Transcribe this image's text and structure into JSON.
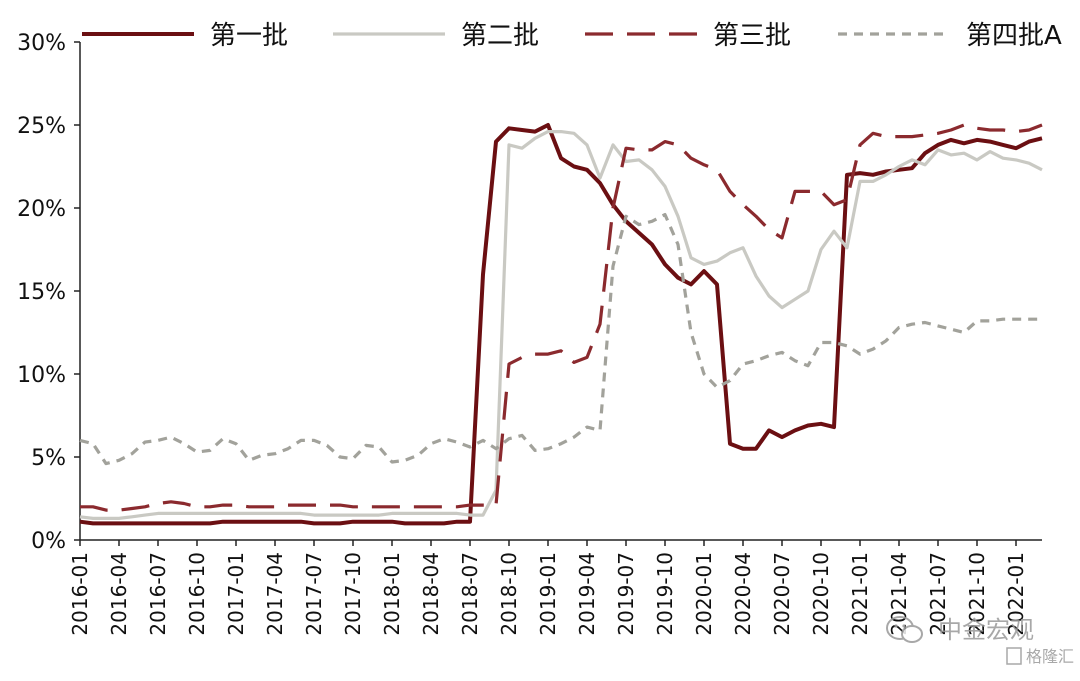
{
  "chart_data": {
    "type": "line",
    "title": "",
    "xlabel": "",
    "ylabel": "",
    "ylim": [
      0,
      30
    ],
    "y_ticks": [
      "0%",
      "5%",
      "10%",
      "15%",
      "20%",
      "25%",
      "30%"
    ],
    "y_tick_values": [
      0,
      5,
      10,
      15,
      20,
      25,
      30
    ],
    "x_tick_labels": [
      "2016-01",
      "2016-04",
      "2016-07",
      "2016-10",
      "2017-01",
      "2017-04",
      "2017-07",
      "2017-10",
      "2018-01",
      "2018-04",
      "2018-07",
      "2018-10",
      "2019-01",
      "2019-04",
      "2019-07",
      "2019-10",
      "2020-01",
      "2020-04",
      "2020-07",
      "2020-10",
      "2021-01",
      "2021-04",
      "2021-07",
      "2021-10",
      "2022-01"
    ],
    "x_start": "2016-01",
    "x_end": "2022-03",
    "grid": false,
    "legend_position": "top",
    "series": [
      {
        "name": "第一批",
        "color": "#6b0f12",
        "dash": "solid",
        "x": [
          "2016-01",
          "2016-02",
          "2016-03",
          "2016-04",
          "2016-05",
          "2016-06",
          "2016-07",
          "2016-08",
          "2016-09",
          "2016-10",
          "2016-11",
          "2016-12",
          "2017-01",
          "2017-02",
          "2017-03",
          "2017-04",
          "2017-05",
          "2017-06",
          "2017-07",
          "2017-08",
          "2017-09",
          "2017-10",
          "2017-11",
          "2017-12",
          "2018-01",
          "2018-02",
          "2018-03",
          "2018-04",
          "2018-05",
          "2018-06",
          "2018-07",
          "2018-08",
          "2018-09",
          "2018-10",
          "2018-11",
          "2018-12",
          "2019-01",
          "2019-02",
          "2019-03",
          "2019-04",
          "2019-05",
          "2019-06",
          "2019-07",
          "2019-08",
          "2019-09",
          "2019-10",
          "2019-11",
          "2019-12",
          "2020-01",
          "2020-02",
          "2020-03",
          "2020-04",
          "2020-05",
          "2020-06",
          "2020-07",
          "2020-08",
          "2020-09",
          "2020-10",
          "2020-11",
          "2020-12",
          "2021-01",
          "2021-02",
          "2021-03",
          "2021-04",
          "2021-05",
          "2021-06",
          "2021-07",
          "2021-08",
          "2021-09",
          "2021-10",
          "2021-11",
          "2021-12",
          "2022-01",
          "2022-02",
          "2022-03"
        ],
        "y": [
          1.1,
          1.0,
          1.0,
          1.0,
          1.0,
          1.0,
          1.0,
          1.0,
          1.0,
          1.0,
          1.0,
          1.1,
          1.1,
          1.1,
          1.1,
          1.1,
          1.1,
          1.1,
          1.0,
          1.0,
          1.0,
          1.1,
          1.1,
          1.1,
          1.1,
          1.0,
          1.0,
          1.0,
          1.0,
          1.1,
          1.1,
          16.0,
          24.0,
          24.8,
          24.7,
          24.6,
          25.0,
          23.0,
          22.5,
          22.3,
          21.5,
          20.2,
          19.2,
          18.5,
          17.8,
          16.6,
          15.8,
          15.4,
          16.2,
          15.4,
          5.8,
          5.5,
          5.5,
          6.6,
          6.2,
          6.6,
          6.9,
          7.0,
          6.8,
          22.0,
          22.1,
          22.0,
          22.2,
          22.3,
          22.4,
          23.3,
          23.8,
          24.1,
          23.9,
          24.1,
          24.0,
          23.8,
          23.6,
          24.0,
          24.2
        ]
      },
      {
        "name": "第二批",
        "color": "#c9c9c3",
        "dash": "solid",
        "x": [
          "2016-01",
          "2016-02",
          "2016-03",
          "2016-04",
          "2016-05",
          "2016-06",
          "2016-07",
          "2016-08",
          "2016-09",
          "2016-10",
          "2016-11",
          "2016-12",
          "2017-01",
          "2017-02",
          "2017-03",
          "2017-04",
          "2017-05",
          "2017-06",
          "2017-07",
          "2017-08",
          "2017-09",
          "2017-10",
          "2017-11",
          "2017-12",
          "2018-01",
          "2018-02",
          "2018-03",
          "2018-04",
          "2018-05",
          "2018-06",
          "2018-07",
          "2018-08",
          "2018-09",
          "2018-10",
          "2018-11",
          "2018-12",
          "2019-01",
          "2019-02",
          "2019-03",
          "2019-04",
          "2019-05",
          "2019-06",
          "2019-07",
          "2019-08",
          "2019-09",
          "2019-10",
          "2019-11",
          "2019-12",
          "2020-01",
          "2020-02",
          "2020-03",
          "2020-04",
          "2020-05",
          "2020-06",
          "2020-07",
          "2020-08",
          "2020-09",
          "2020-10",
          "2020-11",
          "2020-12",
          "2021-01",
          "2021-02",
          "2021-03",
          "2021-04",
          "2021-05",
          "2021-06",
          "2021-07",
          "2021-08",
          "2021-09",
          "2021-10",
          "2021-11",
          "2021-12",
          "2022-01",
          "2022-02",
          "2022-03"
        ],
        "y": [
          1.4,
          1.3,
          1.3,
          1.3,
          1.4,
          1.5,
          1.6,
          1.6,
          1.6,
          1.6,
          1.6,
          1.6,
          1.6,
          1.6,
          1.6,
          1.6,
          1.6,
          1.6,
          1.5,
          1.5,
          1.5,
          1.5,
          1.5,
          1.5,
          1.6,
          1.6,
          1.6,
          1.6,
          1.6,
          1.6,
          1.5,
          1.5,
          3.0,
          23.8,
          23.6,
          24.2,
          24.6,
          24.6,
          24.5,
          23.8,
          21.8,
          23.8,
          22.8,
          22.9,
          22.3,
          21.3,
          19.5,
          17.0,
          16.6,
          16.8,
          17.3,
          17.6,
          15.9,
          14.7,
          14.0,
          14.5,
          15.0,
          17.5,
          18.6,
          17.6,
          21.6,
          21.6,
          22.0,
          22.5,
          22.9,
          22.6,
          23.5,
          23.2,
          23.3,
          22.9,
          23.4,
          23.0,
          22.9,
          22.7,
          22.3
        ]
      },
      {
        "name": "第三批",
        "color": "#8b2a2e",
        "dash": "long",
        "x": [
          "2016-01",
          "2016-02",
          "2016-03",
          "2016-04",
          "2016-05",
          "2016-06",
          "2016-07",
          "2016-08",
          "2016-09",
          "2016-10",
          "2016-11",
          "2016-12",
          "2017-01",
          "2017-02",
          "2017-03",
          "2017-04",
          "2017-05",
          "2017-06",
          "2017-07",
          "2017-08",
          "2017-09",
          "2017-10",
          "2017-11",
          "2017-12",
          "2018-01",
          "2018-02",
          "2018-03",
          "2018-04",
          "2018-05",
          "2018-06",
          "2018-07",
          "2018-08",
          "2018-09",
          "2018-10",
          "2018-11",
          "2018-12",
          "2019-01",
          "2019-02",
          "2019-03",
          "2019-04",
          "2019-05",
          "2019-06",
          "2019-07",
          "2019-08",
          "2019-09",
          "2019-10",
          "2019-11",
          "2019-12",
          "2020-01",
          "2020-02",
          "2020-03",
          "2020-04",
          "2020-05",
          "2020-06",
          "2020-07",
          "2020-08",
          "2020-09",
          "2020-10",
          "2020-11",
          "2020-12",
          "2021-01",
          "2021-02",
          "2021-03",
          "2021-04",
          "2021-05",
          "2021-06",
          "2021-07",
          "2021-08",
          "2021-09",
          "2021-10",
          "2021-11",
          "2021-12",
          "2022-01",
          "2022-02",
          "2022-03"
        ],
        "y": [
          2.0,
          2.0,
          1.8,
          1.8,
          1.9,
          2.0,
          2.2,
          2.3,
          2.2,
          2.0,
          2.0,
          2.1,
          2.1,
          2.0,
          2.0,
          2.0,
          2.1,
          2.1,
          2.1,
          2.1,
          2.1,
          2.0,
          2.0,
          2.0,
          2.0,
          2.0,
          2.0,
          2.0,
          2.0,
          2.0,
          2.1,
          2.1,
          2.1,
          10.6,
          11.0,
          11.2,
          11.2,
          11.4,
          10.7,
          11.0,
          13.0,
          20.0,
          23.6,
          23.5,
          23.5,
          24.0,
          23.8,
          23.0,
          22.6,
          22.3,
          21.0,
          20.2,
          19.5,
          18.7,
          18.2,
          21.0,
          21.0,
          21.0,
          20.2,
          20.5,
          23.8,
          24.5,
          24.3,
          24.3,
          24.3,
          24.4,
          24.5,
          24.7,
          25.0,
          24.8,
          24.7,
          24.7,
          24.6,
          24.7,
          25.0
        ]
      },
      {
        "name": "第四批A",
        "color": "#a2a29b",
        "dash": "short",
        "x": [
          "2016-01",
          "2016-02",
          "2016-03",
          "2016-04",
          "2016-05",
          "2016-06",
          "2016-07",
          "2016-08",
          "2016-09",
          "2016-10",
          "2016-11",
          "2016-12",
          "2017-01",
          "2017-02",
          "2017-03",
          "2017-04",
          "2017-05",
          "2017-06",
          "2017-07",
          "2017-08",
          "2017-09",
          "2017-10",
          "2017-11",
          "2017-12",
          "2018-01",
          "2018-02",
          "2018-03",
          "2018-04",
          "2018-05",
          "2018-06",
          "2018-07",
          "2018-08",
          "2018-09",
          "2018-10",
          "2018-11",
          "2018-12",
          "2019-01",
          "2019-02",
          "2019-03",
          "2019-04",
          "2019-05",
          "2019-06",
          "2019-07",
          "2019-08",
          "2019-09",
          "2019-10",
          "2019-11",
          "2019-12",
          "2020-01",
          "2020-02",
          "2020-03",
          "2020-04",
          "2020-05",
          "2020-06",
          "2020-07",
          "2020-08",
          "2020-09",
          "2020-10",
          "2020-11",
          "2020-12",
          "2021-01",
          "2021-02",
          "2021-03",
          "2021-04",
          "2021-05",
          "2021-06",
          "2021-07",
          "2021-08",
          "2021-09",
          "2021-10",
          "2021-11",
          "2021-12",
          "2022-01",
          "2022-02",
          "2022-03"
        ],
        "y": [
          6.0,
          5.8,
          4.6,
          4.8,
          5.2,
          5.9,
          6.0,
          6.2,
          5.8,
          5.3,
          5.4,
          6.1,
          5.8,
          4.8,
          5.1,
          5.2,
          5.5,
          6.0,
          6.0,
          5.7,
          5.0,
          4.9,
          5.7,
          5.6,
          4.7,
          4.8,
          5.1,
          5.8,
          6.1,
          5.9,
          5.6,
          6.0,
          5.5,
          6.1,
          6.3,
          5.4,
          5.5,
          5.8,
          6.2,
          6.8,
          6.6,
          16.5,
          19.5,
          19.0,
          19.2,
          19.6,
          17.8,
          12.5,
          10.0,
          9.2,
          9.6,
          10.6,
          10.8,
          11.1,
          11.3,
          10.8,
          10.5,
          11.9,
          11.9,
          11.7,
          11.2,
          11.5,
          12.0,
          12.8,
          13.0,
          13.1,
          12.9,
          12.7,
          12.5,
          13.2,
          13.2,
          13.3,
          13.3,
          13.3,
          13.3
        ]
      }
    ]
  },
  "watermark": {
    "main_text": "中金宏观",
    "sub_text": "格隆汇"
  }
}
